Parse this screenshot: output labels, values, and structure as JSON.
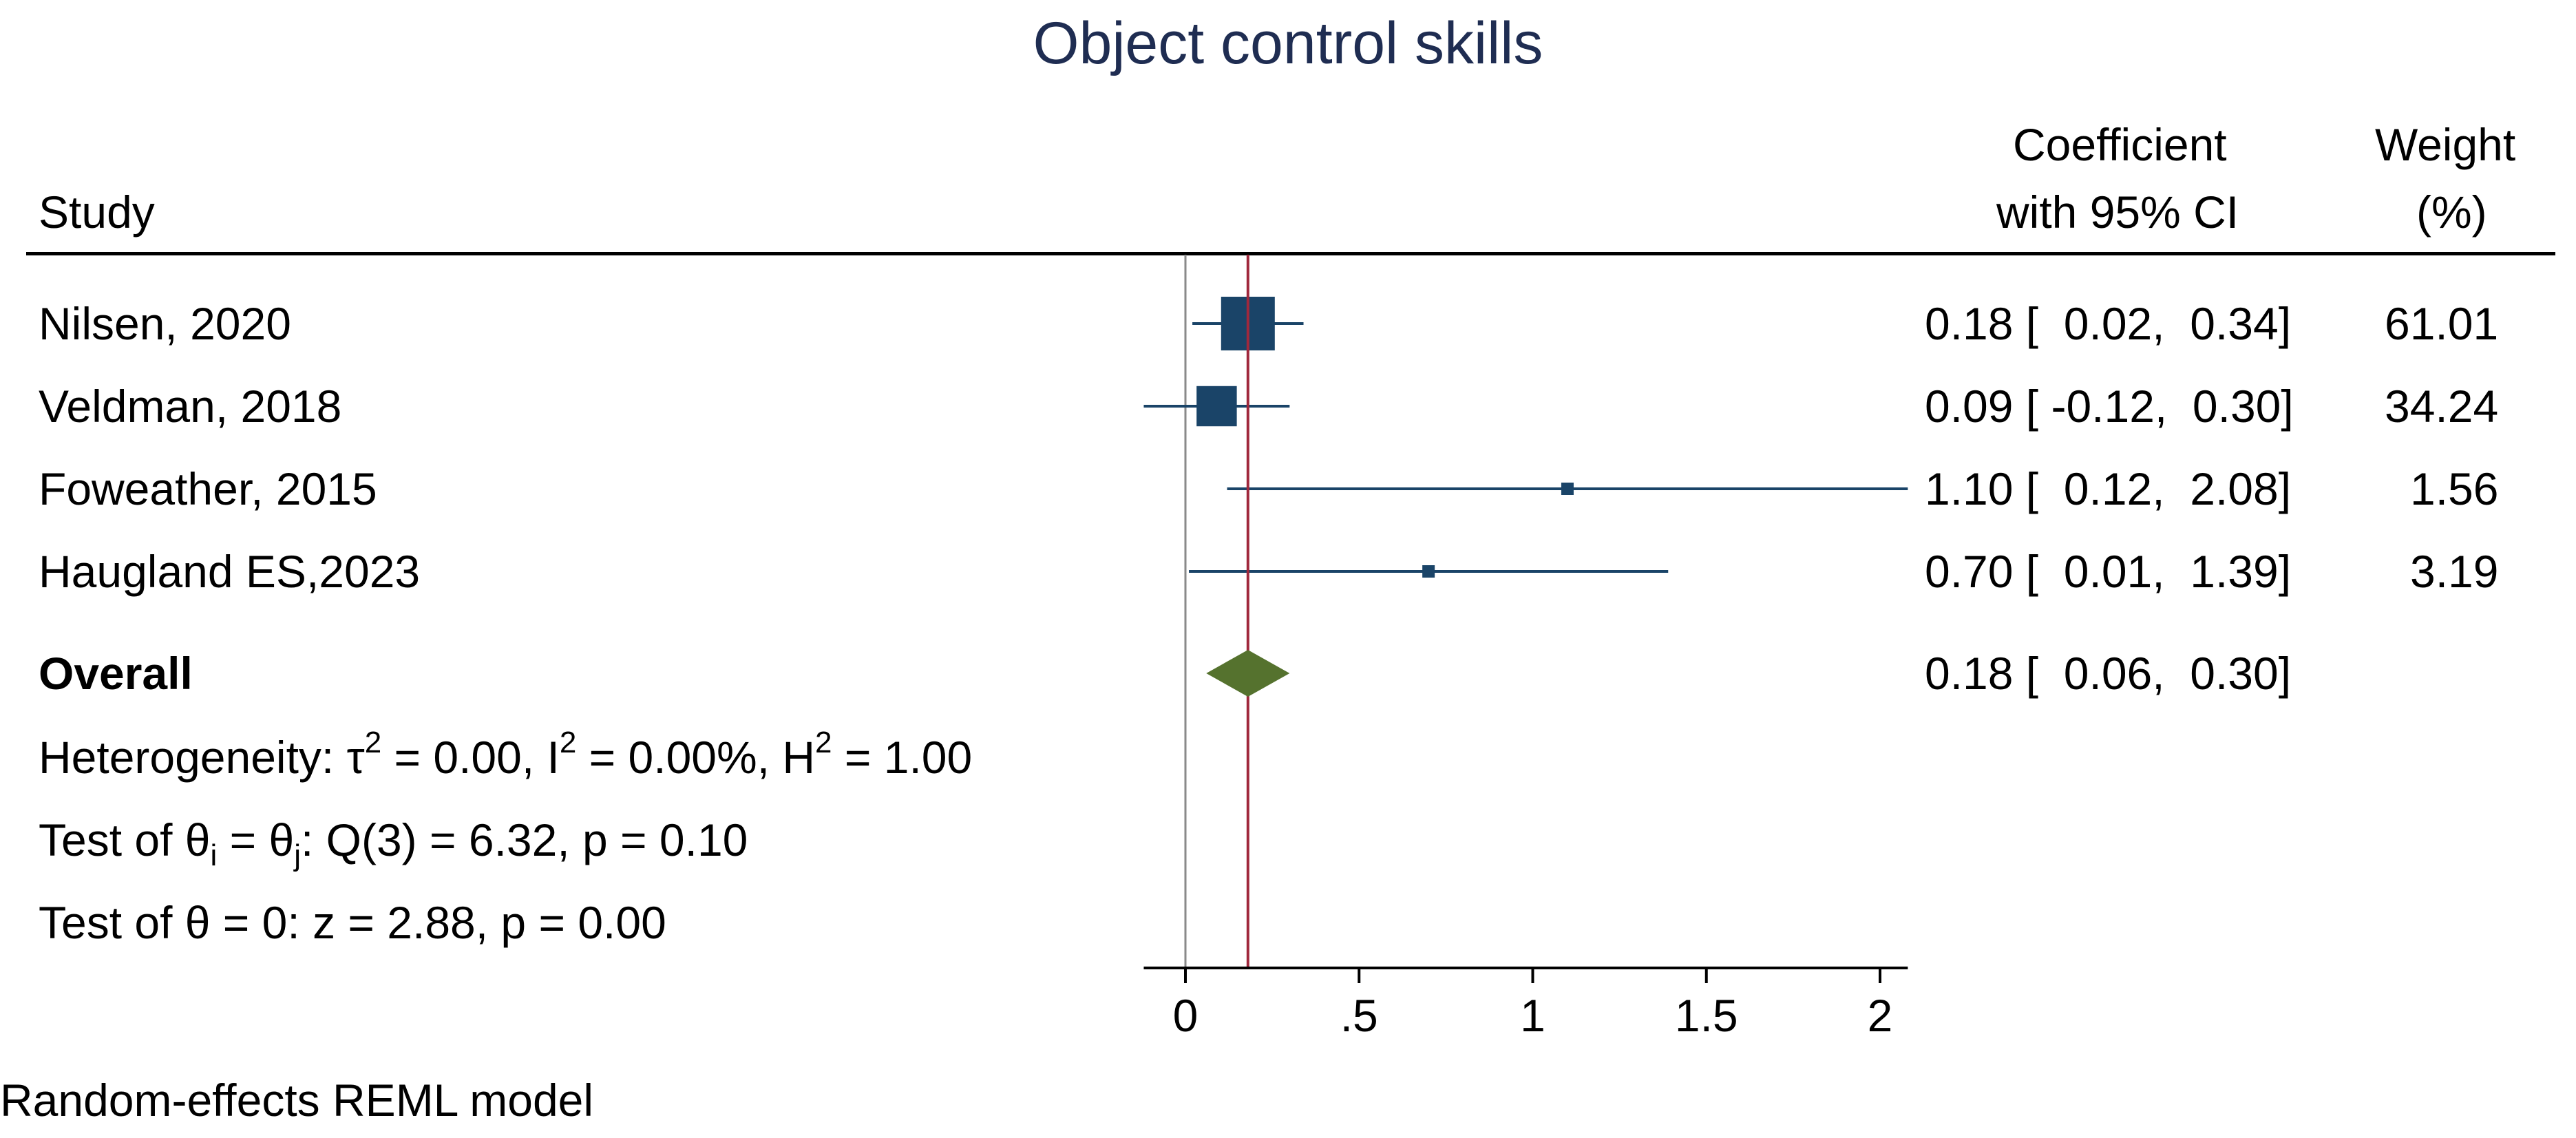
{
  "title": "Object control skills",
  "headers": {
    "study": "Study",
    "coef_line1": "Coefficient",
    "coef_line2": "with 95% CI",
    "weight_line1": "Weight",
    "weight_line2": "(%)"
  },
  "footer": "Random-effects REML model",
  "stats": {
    "heterogeneity": {
      "prefix": "Heterogeneity: ",
      "tau_sym": "τ",
      "tau_exp": "2",
      "tau_val": " = 0.00, I",
      "i_exp": "2",
      "i_val": " = 0.00%, H",
      "h_exp": "2",
      "h_val": " = 1.00"
    },
    "test_ij": {
      "prefix": "Test of ",
      "theta1": "θ",
      "sub1": "i",
      "mid": " = ",
      "theta2": "θ",
      "sub2": "j",
      "rest": ": Q(3) = 6.32, p = 0.10"
    },
    "test_zero": "Test of θ = 0: z = 2.88, p = 0.00"
  },
  "chart_data": {
    "type": "forest",
    "title": "Object control skills",
    "xlim": [
      -0.12,
      2.08
    ],
    "x_ticks": [
      0,
      0.5,
      1,
      1.5,
      2
    ],
    "x_tick_labels": [
      "0",
      ".5",
      "1",
      "1.5",
      "2"
    ],
    "null_line": 0,
    "overall_line": 0.18,
    "studies": [
      {
        "name": "Nilsen, 2020",
        "coef": 0.18,
        "lo": 0.02,
        "hi": 0.34,
        "weight": 61.01,
        "ci_text": "0.18 [  0.02,  0.34]",
        "weight_text": "61.01"
      },
      {
        "name": "Veldman, 2018",
        "coef": 0.09,
        "lo": -0.12,
        "hi": 0.3,
        "weight": 34.24,
        "ci_text": "0.09 [ -0.12,  0.30]",
        "weight_text": "34.24"
      },
      {
        "name": "Foweather, 2015",
        "coef": 1.1,
        "lo": 0.12,
        "hi": 2.08,
        "weight": 1.56,
        "ci_text": "1.10 [  0.12,  2.08]",
        "weight_text": "1.56"
      },
      {
        "name": "Haugland ES,2023",
        "coef": 0.7,
        "lo": 0.01,
        "hi": 1.39,
        "weight": 3.19,
        "ci_text": "0.70 [  0.01,  1.39]",
        "weight_text": "3.19"
      }
    ],
    "overall": {
      "name": "Overall",
      "coef": 0.18,
      "lo": 0.06,
      "hi": 0.3,
      "ci_text": "0.18 [  0.06,  0.30]"
    },
    "colors": {
      "study_marker": "#1a4468",
      "ci_line": "#1a4468",
      "overall_diamond": "#55722e",
      "overall_line": "#a0283c",
      "null_line": "#8a8a8a",
      "title": "#1f2d52"
    }
  }
}
